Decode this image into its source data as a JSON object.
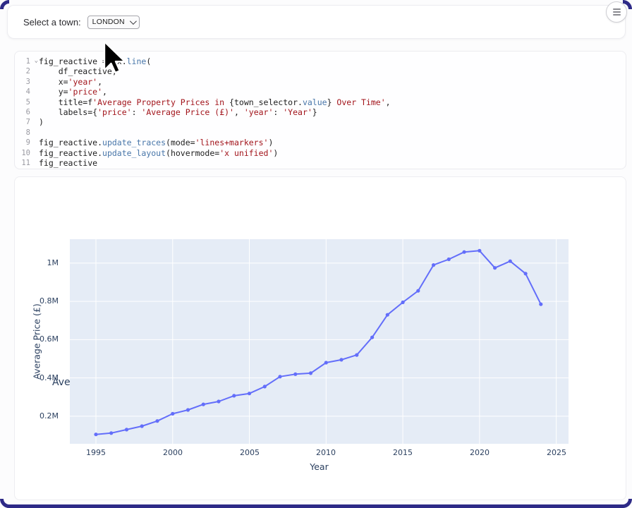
{
  "page": {
    "background": "#fcfcfd",
    "frame_color": "#2e2a87"
  },
  "menu_button": {
    "icon": "hamburger-icon"
  },
  "town_widget": {
    "label": "Select a town:",
    "select_value": "LONDON"
  },
  "icons": {
    "menu": "hamburger-icon",
    "select_chevron": "chevron-down-icon",
    "gutter_fold": "chevron-down-icon",
    "pointer": "arrow-cursor"
  },
  "code_editor": {
    "lines": [
      {
        "n": "1",
        "fold": "⌄",
        "t": [
          [
            "fig_reactive = px.",
            "p"
          ],
          [
            "line",
            "fn"
          ],
          [
            "(",
            "p"
          ]
        ]
      },
      {
        "n": "2",
        "t": [
          [
            "    df_reactive,",
            "p"
          ]
        ]
      },
      {
        "n": "3",
        "t": [
          [
            "    x=",
            "p"
          ],
          [
            "'year'",
            "s"
          ],
          [
            ",",
            "p"
          ]
        ]
      },
      {
        "n": "4",
        "t": [
          [
            "    y=",
            "p"
          ],
          [
            "'price'",
            "s"
          ],
          [
            ",",
            "p"
          ]
        ]
      },
      {
        "n": "5",
        "t": [
          [
            "    title=f",
            "p"
          ],
          [
            "'Average Property Prices in ",
            "s"
          ],
          [
            "{",
            "p"
          ],
          [
            "town_selector",
            "p"
          ],
          [
            ".",
            "p"
          ],
          [
            "value",
            "fn"
          ],
          [
            "}",
            "p"
          ],
          [
            " Over Time'",
            "s"
          ],
          [
            ",",
            "p"
          ]
        ]
      },
      {
        "n": "6",
        "t": [
          [
            "    labels={",
            "p"
          ],
          [
            "'price'",
            "s"
          ],
          [
            ": ",
            "p"
          ],
          [
            "'Average Price (£)'",
            "s"
          ],
          [
            ", ",
            "p"
          ],
          [
            "'year'",
            "s"
          ],
          [
            ": ",
            "p"
          ],
          [
            "'Year'",
            "s"
          ],
          [
            "}",
            "p"
          ]
        ]
      },
      {
        "n": "7",
        "t": [
          [
            ")",
            "p"
          ]
        ]
      },
      {
        "n": "8",
        "t": []
      },
      {
        "n": "9",
        "t": [
          [
            "fig_reactive.",
            "p"
          ],
          [
            "update_traces",
            "fn"
          ],
          [
            "(mode=",
            "p"
          ],
          [
            "'lines+markers'",
            "s"
          ],
          [
            ")",
            "p"
          ]
        ]
      },
      {
        "n": "10",
        "t": [
          [
            "fig_reactive.",
            "p"
          ],
          [
            "update_layout",
            "fn"
          ],
          [
            "(hovermode=",
            "p"
          ],
          [
            "'x unified'",
            "s"
          ],
          [
            ")",
            "p"
          ]
        ]
      },
      {
        "n": "11",
        "t": [
          [
            "fig_reactive",
            "p"
          ]
        ]
      }
    ]
  },
  "chart_data": {
    "type": "line",
    "mode": "lines+markers",
    "title": "Average Property Prices in LONDON Over Time",
    "xlabel": "Year",
    "ylabel": "Average Price (£)",
    "x": [
      1995,
      1996,
      1997,
      1998,
      1999,
      2000,
      2001,
      2002,
      2003,
      2004,
      2005,
      2006,
      2007,
      2008,
      2009,
      2010,
      2011,
      2012,
      2013,
      2014,
      2015,
      2016,
      2017,
      2018,
      2019,
      2020,
      2021,
      2022,
      2023,
      2024
    ],
    "values": [
      0.105,
      0.112,
      0.13,
      0.148,
      0.175,
      0.213,
      0.233,
      0.262,
      0.277,
      0.307,
      0.319,
      0.355,
      0.407,
      0.42,
      0.425,
      0.48,
      0.495,
      0.52,
      0.612,
      0.73,
      0.795,
      0.855,
      0.99,
      1.02,
      1.058,
      1.065,
      0.975,
      1.01,
      0.945,
      0.785
    ],
    "units": "millions GBP",
    "xlim": [
      1993.3,
      2025.8
    ],
    "ylim": [
      0.056,
      1.125
    ],
    "xticks": {
      "values": [
        1995,
        2000,
        2005,
        2010,
        2015,
        2020,
        2025
      ],
      "labels": [
        "1995",
        "2000",
        "2005",
        "2010",
        "2015",
        "2020",
        "2025"
      ]
    },
    "yticks": {
      "values": [
        0.2,
        0.4,
        0.6,
        0.8,
        1.0
      ],
      "labels": [
        "0.2M",
        "0.4M",
        "0.6M",
        "0.8M",
        "1M"
      ]
    },
    "line_color": "#636efa",
    "plot_bg": "#e5ecf6",
    "grid": "on",
    "legend": "none"
  }
}
